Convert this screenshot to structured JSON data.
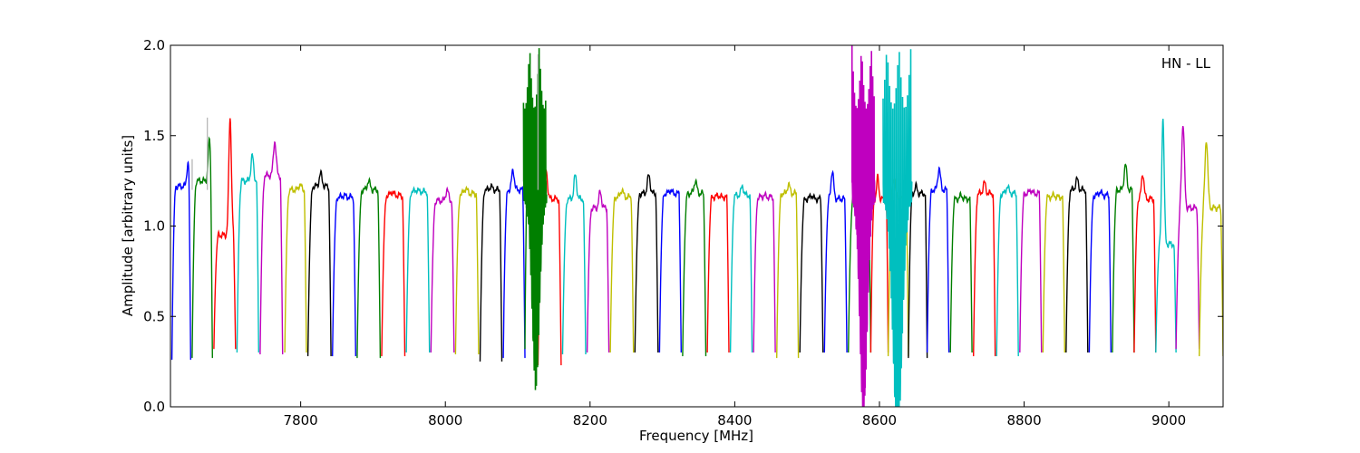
{
  "chart_data": {
    "type": "line",
    "title": "",
    "xlabel": "Frequency [MHz]",
    "ylabel": "Amplitude [arbitrary units]",
    "xlim": [
      7620,
      9075
    ],
    "ylim": [
      0.0,
      2.0
    ],
    "x_ticks": [
      7800,
      8000,
      8200,
      8400,
      8600,
      8800,
      9000
    ],
    "y_ticks": [
      0.0,
      0.5,
      1.0,
      1.5,
      2.0
    ],
    "x_tick_labels": [
      "7800",
      "8000",
      "8200",
      "8400",
      "8600",
      "8800",
      "9000"
    ],
    "y_tick_labels": [
      "0.0",
      "0.5",
      "1.0",
      "1.5",
      "2.0"
    ],
    "annotation": "HN - LL",
    "grid": false,
    "legend": "none",
    "colors": {
      "b": "#0000ff",
      "g": "#007f00",
      "r": "#ff0000",
      "c": "#00bfbf",
      "m": "#bf00bf",
      "y": "#bfbf00",
      "k": "#000000",
      "ghost": "#b0b0b0"
    },
    "series": [
      {
        "start": 7622,
        "end": 7648,
        "color": "b",
        "min": 0.26,
        "plateau": 1.22,
        "peak": 1.35,
        "peak_at": 0.85
      },
      {
        "start": 7650,
        "end": 7678,
        "color": "g",
        "min": 0.27,
        "plateau": 1.25,
        "peak": 1.47,
        "peak_at": 0.85
      },
      {
        "start": 7680,
        "end": 7710,
        "color": "r",
        "min": 0.32,
        "plateau": 0.95,
        "peak": 1.6,
        "peak_at": 0.75
      },
      {
        "start": 7712,
        "end": 7742,
        "color": "c",
        "min": 0.3,
        "plateau": 1.25,
        "peak": 1.39,
        "peak_at": 0.7
      },
      {
        "start": 7744,
        "end": 7775,
        "color": "m",
        "min": 0.29,
        "plateau": 1.28,
        "peak": 1.47,
        "peak_at": 0.65
      },
      {
        "start": 7778,
        "end": 7808,
        "color": "y",
        "min": 0.3,
        "plateau": 1.2,
        "peak": 1.23,
        "peak_at": 0.7
      },
      {
        "start": 7810,
        "end": 7842,
        "color": "k",
        "min": 0.28,
        "plateau": 1.22,
        "peak": 1.29,
        "peak_at": 0.55
      },
      {
        "start": 7844,
        "end": 7876,
        "color": "b",
        "min": 0.28,
        "plateau": 1.16,
        "peak": 1.17,
        "peak_at": 0.5
      },
      {
        "start": 7878,
        "end": 7910,
        "color": "g",
        "min": 0.27,
        "plateau": 1.2,
        "peak": 1.25,
        "peak_at": 0.5
      },
      {
        "start": 7912,
        "end": 7944,
        "color": "r",
        "min": 0.28,
        "plateau": 1.17,
        "peak": 1.19,
        "peak_at": 0.45
      },
      {
        "start": 7946,
        "end": 7978,
        "color": "c",
        "min": 0.3,
        "plateau": 1.19,
        "peak": 1.2,
        "peak_at": 0.45
      },
      {
        "start": 7980,
        "end": 8012,
        "color": "m",
        "min": 0.3,
        "plateau": 1.14,
        "peak": 1.2,
        "peak_at": 0.7
      },
      {
        "start": 8014,
        "end": 8046,
        "color": "y",
        "min": 0.29,
        "plateau": 1.18,
        "peak": 1.21,
        "peak_at": 0.45
      },
      {
        "start": 8048,
        "end": 8078,
        "color": "k",
        "min": 0.25,
        "plateau": 1.2,
        "peak": 1.22,
        "peak_at": 0.5
      },
      {
        "start": 8080,
        "end": 8110,
        "color": "b",
        "min": 0.27,
        "plateau": 1.2,
        "peak": 1.31,
        "peak_at": 0.45
      },
      {
        "start": 8110,
        "end": 8128,
        "color": "g",
        "min": 0.32,
        "plateau": 1.3,
        "peak": 1.47,
        "peak_at": 0.8,
        "deep": true
      },
      {
        "start": 8128,
        "end": 8160,
        "color": "r",
        "min": 0.23,
        "plateau": 1.15,
        "peak": 1.31,
        "peak_at": 0.35
      },
      {
        "start": 8162,
        "end": 8194,
        "color": "c",
        "min": 0.29,
        "plateau": 1.15,
        "peak": 1.28,
        "peak_at": 0.55
      },
      {
        "start": 8196,
        "end": 8226,
        "color": "m",
        "min": 0.3,
        "plateau": 1.1,
        "peak": 1.19,
        "peak_at": 0.6
      },
      {
        "start": 8228,
        "end": 8260,
        "color": "y",
        "min": 0.3,
        "plateau": 1.16,
        "peak": 1.2,
        "peak_at": 0.5
      },
      {
        "start": 8262,
        "end": 8294,
        "color": "k",
        "min": 0.3,
        "plateau": 1.18,
        "peak": 1.28,
        "peak_at": 0.6
      },
      {
        "start": 8296,
        "end": 8326,
        "color": "b",
        "min": 0.3,
        "plateau": 1.18,
        "peak": 1.2,
        "peak_at": 0.5
      },
      {
        "start": 8328,
        "end": 8360,
        "color": "g",
        "min": 0.28,
        "plateau": 1.18,
        "peak": 1.25,
        "peak_at": 0.55
      },
      {
        "start": 8362,
        "end": 8392,
        "color": "r",
        "min": 0.3,
        "plateau": 1.16,
        "peak": 1.17,
        "peak_at": 0.5
      },
      {
        "start": 8394,
        "end": 8424,
        "color": "c",
        "min": 0.3,
        "plateau": 1.17,
        "peak": 1.22,
        "peak_at": 0.55
      },
      {
        "start": 8426,
        "end": 8456,
        "color": "m",
        "min": 0.3,
        "plateau": 1.16,
        "peak": 1.17,
        "peak_at": 0.5
      },
      {
        "start": 8458,
        "end": 8488,
        "color": "y",
        "min": 0.27,
        "plateau": 1.18,
        "peak": 1.23,
        "peak_at": 0.55
      },
      {
        "start": 8490,
        "end": 8522,
        "color": "k",
        "min": 0.3,
        "plateau": 1.15,
        "peak": 1.17,
        "peak_at": 0.5
      },
      {
        "start": 8524,
        "end": 8555,
        "color": "b",
        "min": 0.3,
        "plateau": 1.15,
        "peak": 1.3,
        "peak_at": 0.35
      },
      {
        "start": 8557,
        "end": 8588,
        "color": "g",
        "min": 0.3,
        "plateau": 1.15,
        "peak": 1.22,
        "peak_at": 0.6
      },
      {
        "start": 8588,
        "end": 8612,
        "color": "r",
        "min": 0.3,
        "plateau": 1.15,
        "peak": 1.27,
        "peak_at": 0.4
      },
      {
        "start": 8612,
        "end": 8640,
        "color": "y",
        "min": 0.28,
        "plateau": 1.15,
        "peak": 1.27,
        "peak_at": 0.3
      },
      {
        "start": 8640,
        "end": 8666,
        "color": "k",
        "min": 0.27,
        "plateau": 1.18,
        "peak": 1.22,
        "peak_at": 0.4
      },
      {
        "start": 8666,
        "end": 8696,
        "color": "b",
        "min": 0.3,
        "plateau": 1.2,
        "peak": 1.32,
        "peak_at": 0.55
      },
      {
        "start": 8698,
        "end": 8728,
        "color": "g",
        "min": 0.3,
        "plateau": 1.15,
        "peak": 1.17,
        "peak_at": 0.5
      },
      {
        "start": 8730,
        "end": 8760,
        "color": "r",
        "min": 0.28,
        "plateau": 1.18,
        "peak": 1.24,
        "peak_at": 0.5
      },
      {
        "start": 8762,
        "end": 8792,
        "color": "c",
        "min": 0.28,
        "plateau": 1.18,
        "peak": 1.22,
        "peak_at": 0.5
      },
      {
        "start": 8794,
        "end": 8824,
        "color": "m",
        "min": 0.3,
        "plateau": 1.18,
        "peak": 1.2,
        "peak_at": 0.5
      },
      {
        "start": 8826,
        "end": 8856,
        "color": "y",
        "min": 0.3,
        "plateau": 1.16,
        "peak": 1.17,
        "peak_at": 0.5
      },
      {
        "start": 8858,
        "end": 8888,
        "color": "k",
        "min": 0.3,
        "plateau": 1.2,
        "peak": 1.26,
        "peak_at": 0.5
      },
      {
        "start": 8890,
        "end": 8920,
        "color": "b",
        "min": 0.3,
        "plateau": 1.17,
        "peak": 1.19,
        "peak_at": 0.5
      },
      {
        "start": 8922,
        "end": 8952,
        "color": "g",
        "min": 0.3,
        "plateau": 1.2,
        "peak": 1.34,
        "peak_at": 0.6
      },
      {
        "start": 8952,
        "end": 8982,
        "color": "r",
        "min": 0.3,
        "plateau": 1.15,
        "peak": 1.29,
        "peak_at": 0.4
      },
      {
        "start": 8982,
        "end": 9010,
        "color": "c",
        "min": 0.3,
        "plateau": 0.9,
        "peak": 1.6,
        "peak_at": 0.35
      },
      {
        "start": 9010,
        "end": 9042,
        "color": "m",
        "min": 0.32,
        "plateau": 1.1,
        "peak": 1.56,
        "peak_at": 0.3
      },
      {
        "start": 9042,
        "end": 9075,
        "color": "y",
        "min": 0.28,
        "plateau": 1.1,
        "peak": 1.48,
        "peak_at": 0.3
      }
    ],
    "interference": [
      {
        "center": 8578,
        "width": 22,
        "color": "m",
        "min": 0.14,
        "top": 2.0,
        "start": 8562,
        "end": 8594
      },
      {
        "center": 8625,
        "width": 28,
        "color": "c",
        "min": 0.03,
        "top": 2.0,
        "start": 8605,
        "end": 8645
      },
      {
        "center": 8125,
        "width": 22,
        "color": "g",
        "min": 0.32,
        "top": 2.0,
        "start": 8108,
        "end": 8140
      }
    ],
    "spikes": [
      {
        "x": 7671,
        "y": 1.6,
        "color": "ghost"
      },
      {
        "x": 8128,
        "y": 1.95,
        "color": "ghost"
      },
      {
        "x": 7650,
        "y": 1.37,
        "color": "ghost"
      }
    ]
  }
}
